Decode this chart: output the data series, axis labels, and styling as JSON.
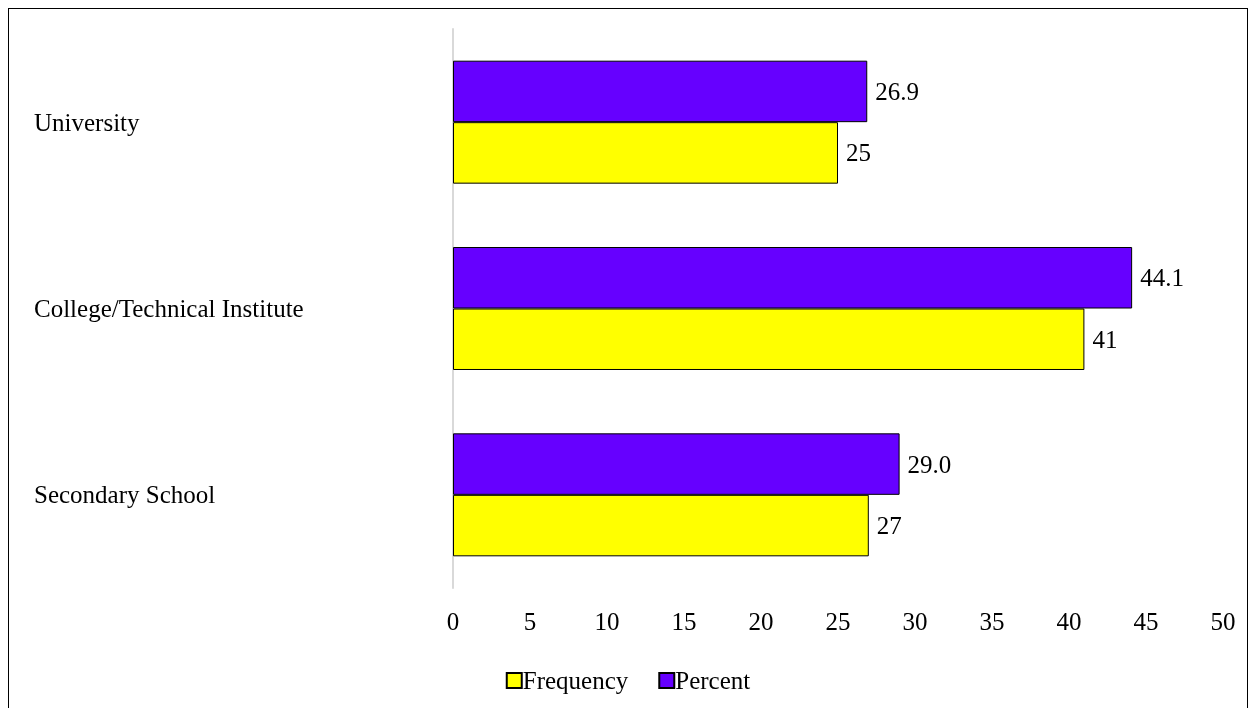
{
  "chart_data": {
    "type": "bar",
    "orientation": "horizontal",
    "categories": [
      "University",
      "College/Technical Institute",
      "Secondary School"
    ],
    "series": [
      {
        "name": "Frequency",
        "color": "#ffff00",
        "values": [
          25,
          41,
          27
        ],
        "value_labels": [
          "25",
          "41",
          "27"
        ]
      },
      {
        "name": "Percent",
        "color": "#6600ff",
        "values": [
          26.9,
          44.1,
          29.0
        ],
        "value_labels": [
          "26.9",
          "44.1",
          "29.0"
        ]
      }
    ],
    "xlim": [
      0,
      50
    ],
    "xticks": [
      0,
      5,
      10,
      15,
      20,
      25,
      30,
      35,
      40,
      45,
      50
    ],
    "grid": false,
    "legend": "bottom"
  }
}
